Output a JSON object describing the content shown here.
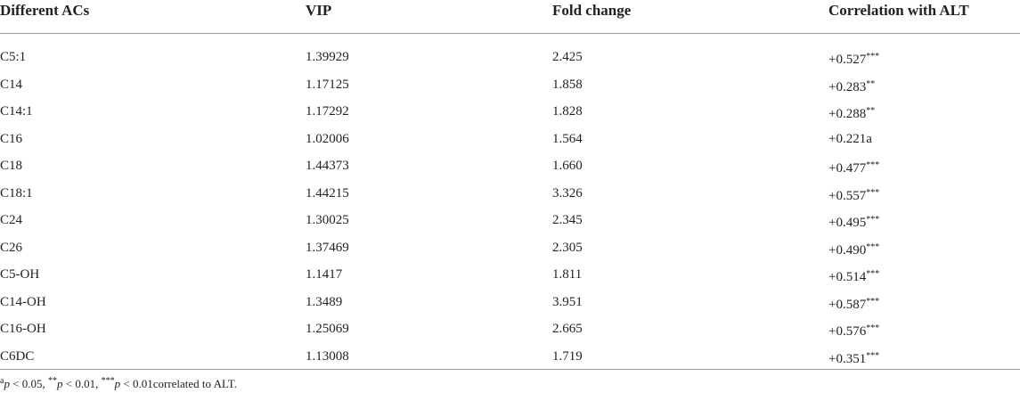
{
  "table": {
    "header": [
      "Different ACs",
      "VIP",
      "Fold change",
      "Correlation with ALT"
    ],
    "rows": [
      [
        "C5:1",
        "1.39929",
        "2.425",
        {
          "value": "+0.527",
          "sig": "***"
        }
      ],
      [
        "C14",
        "1.17125",
        "1.858",
        {
          "value": "+0.283",
          "sig": "**"
        }
      ],
      [
        "C14:1",
        "1.17292",
        "1.828",
        {
          "value": "+0.288",
          "sig": "**"
        }
      ],
      [
        "C16",
        "1.02006",
        "1.564",
        {
          "value": "+0.221a",
          "sig": ""
        }
      ],
      [
        "C18",
        "1.44373",
        "1.660",
        {
          "value": "+0.477",
          "sig": "***"
        }
      ],
      [
        "C18:1",
        "1.44215",
        "3.326",
        {
          "value": "+0.557",
          "sig": "***"
        }
      ],
      [
        "C24",
        "1.30025",
        "2.345",
        {
          "value": "+0.495",
          "sig": "***"
        }
      ],
      [
        "C26",
        "1.37469",
        "2.305",
        {
          "value": "+0.490",
          "sig": "***"
        }
      ],
      [
        "C5-OH",
        "1.1417",
        "1.811",
        {
          "value": "+0.514",
          "sig": "***"
        }
      ],
      [
        "C14-OH",
        "1.3489",
        "3.951",
        {
          "value": "+0.587",
          "sig": "***"
        }
      ],
      [
        "C16-OH",
        "1.25069",
        "2.665",
        {
          "value": "+0.576",
          "sig": "***"
        }
      ],
      [
        "C6DC",
        "1.13008",
        "1.719",
        {
          "value": "+0.351",
          "sig": "***"
        }
      ]
    ],
    "footnote": [
      "a",
      "p",
      " < 0.05, ",
      "**",
      "p",
      " < 0.01, ",
      "***",
      "p",
      " < 0.01correlated to ALT."
    ]
  }
}
